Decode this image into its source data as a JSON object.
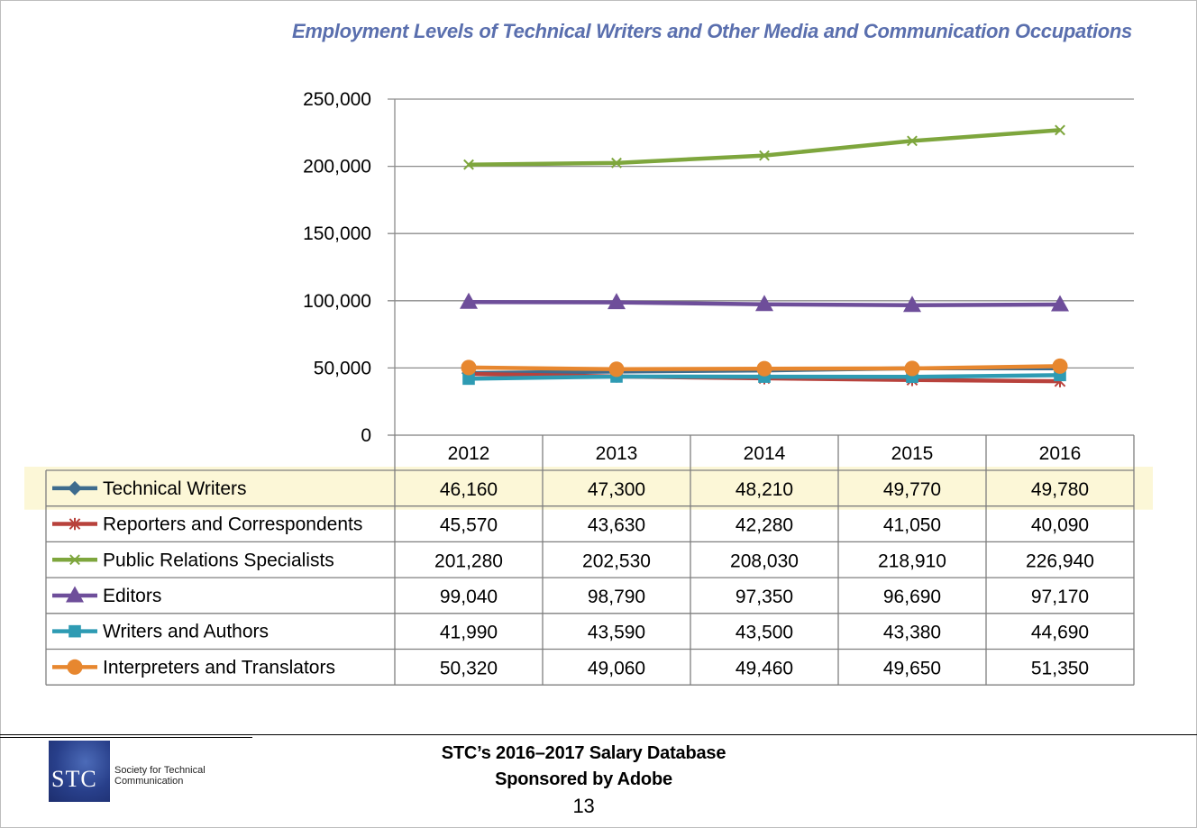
{
  "chart_data": {
    "type": "line",
    "title": "Employment Levels of Technical Writers and Other Media and Communication Occupations",
    "categories": [
      "2012",
      "2013",
      "2014",
      "2015",
      "2016"
    ],
    "ylim": [
      0,
      250000
    ],
    "yticks": [
      0,
      50000,
      100000,
      150000,
      200000,
      250000
    ],
    "ytick_labels": [
      "0",
      "50,000",
      "100,000",
      "150,000",
      "200,000",
      "250,000"
    ],
    "grid": true,
    "data_table": true,
    "highlighted_row": "Technical Writers",
    "series": [
      {
        "name": "Technical Writers",
        "color": "#3e6c8e",
        "marker": "diamond",
        "values": [
          46160,
          47300,
          48210,
          49770,
          49780
        ],
        "labels": [
          "46,160",
          "47,300",
          "48,210",
          "49,770",
          "49,780"
        ]
      },
      {
        "name": "Reporters and Correspondents",
        "color": "#b8423c",
        "marker": "star",
        "values": [
          45570,
          43630,
          42280,
          41050,
          40090
        ],
        "labels": [
          "45,570",
          "43,630",
          "42,280",
          "41,050",
          "40,090"
        ]
      },
      {
        "name": "Public Relations Specialists",
        "color": "#7ea63d",
        "marker": "x",
        "values": [
          201280,
          202530,
          208030,
          218910,
          226940
        ],
        "labels": [
          "201,280",
          "202,530",
          "208,030",
          "218,910",
          "226,940"
        ]
      },
      {
        "name": "Editors",
        "color": "#6e4e9a",
        "marker": "triangle",
        "values": [
          99040,
          98790,
          97350,
          96690,
          97170
        ],
        "labels": [
          "99,040",
          "98,790",
          "97,350",
          "96,690",
          "97,170"
        ]
      },
      {
        "name": "Writers and Authors",
        "color": "#2e9bb3",
        "marker": "square",
        "values": [
          41990,
          43590,
          43500,
          43380,
          44690
        ],
        "labels": [
          "41,990",
          "43,590",
          "43,500",
          "43,380",
          "44,690"
        ]
      },
      {
        "name": "Interpreters and Translators",
        "color": "#e7872f",
        "marker": "circle",
        "values": [
          50320,
          49060,
          49460,
          49650,
          51350
        ],
        "labels": [
          "50,320",
          "49,060",
          "49,460",
          "49,650",
          "51,350"
        ]
      }
    ]
  },
  "footer": {
    "logo_text": "STC",
    "organization": "Society for Technical Communication",
    "line1": "STC’s 2016–2017 Salary Database",
    "line2": "Sponsored by Adobe",
    "page_number": "13"
  }
}
